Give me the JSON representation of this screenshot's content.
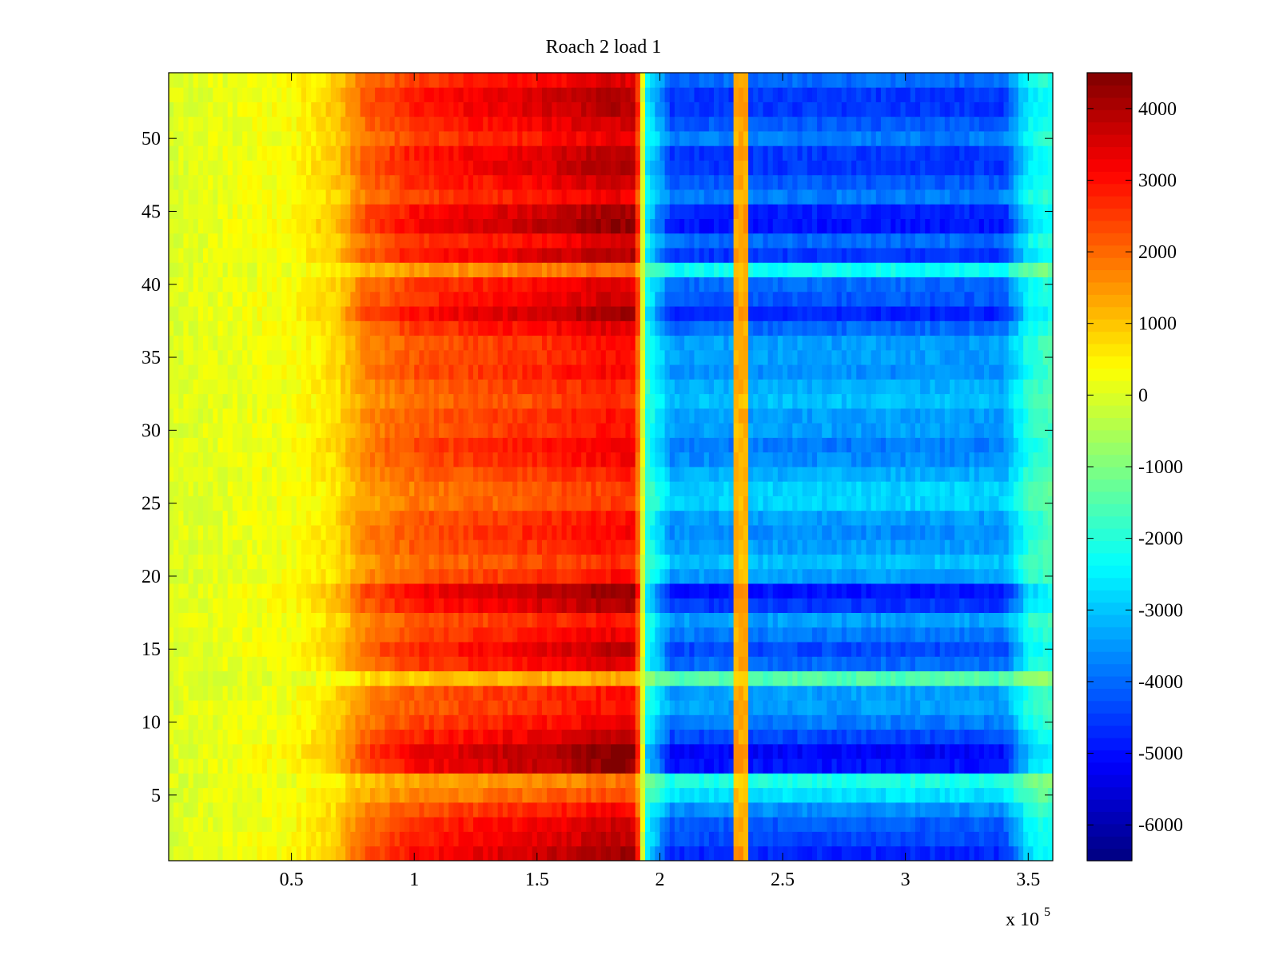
{
  "chart_data": {
    "type": "heatmap",
    "title": "Roach 2 load 1",
    "xlabel": "",
    "ylabel": "",
    "x_multiplier_label": "x 10",
    "x_multiplier_exponent": "5",
    "xlim": [
      0,
      3.6
    ],
    "ylim": [
      0.5,
      54.5
    ],
    "x_ticks": [
      0.5,
      1,
      1.5,
      2,
      2.5,
      3,
      3.5
    ],
    "x_tick_labels": [
      "0.5",
      "1",
      "1.5",
      "2",
      "2.5",
      "3",
      "3.5"
    ],
    "y_ticks": [
      5,
      10,
      15,
      20,
      25,
      30,
      35,
      40,
      45,
      50
    ],
    "y_tick_labels": [
      "5",
      "10",
      "15",
      "20",
      "25",
      "30",
      "35",
      "40",
      "45",
      "50"
    ],
    "colormap": "jet",
    "clim": [
      -6500,
      4500
    ],
    "colorbar_ticks": [
      4000,
      3000,
      2000,
      1000,
      0,
      -1000,
      -2000,
      -3000,
      -4000,
      -5000,
      -6000
    ],
    "colorbar_tick_labels": [
      "4000",
      "3000",
      "2000",
      "1000",
      "0",
      "-1000",
      "-2000",
      "-3000",
      "-4000",
      "-5000",
      "-6000"
    ],
    "rows": 54,
    "x_profile_breakpoints": [
      0.0,
      0.5,
      0.68,
      0.8,
      1.0,
      1.5,
      1.8,
      1.9,
      1.95,
      2.05,
      2.3,
      2.33,
      2.36,
      2.5,
      3.4,
      3.5,
      3.6
    ],
    "x_profile_values": [
      0,
      300,
      800,
      1800,
      2400,
      2900,
      3300,
      3300,
      -2200,
      -3800,
      -3800,
      1200,
      -3800,
      -3800,
      -3800,
      -2200,
      -1800
    ],
    "row_intensity": [
      1.25,
      1.15,
      1.1,
      0.95,
      0.7,
      0.55,
      1.3,
      1.35,
      1.15,
      1.0,
      0.9,
      0.9,
      0.4,
      1.05,
      1.15,
      1.0,
      0.9,
      1.2,
      1.3,
      0.9,
      0.8,
      0.9,
      0.95,
      0.9,
      0.75,
      0.75,
      0.85,
      0.95,
      1.0,
      0.9,
      0.9,
      0.8,
      0.85,
      0.95,
      0.9,
      0.9,
      1.05,
      1.25,
      1.1,
      1.05,
      0.6,
      1.2,
      1.05,
      1.3,
      1.25,
      1.0,
      1.1,
      1.2,
      1.2,
      1.0,
      1.1,
      1.2,
      1.2,
      1.05
    ],
    "ridge_center": 2.33
  }
}
